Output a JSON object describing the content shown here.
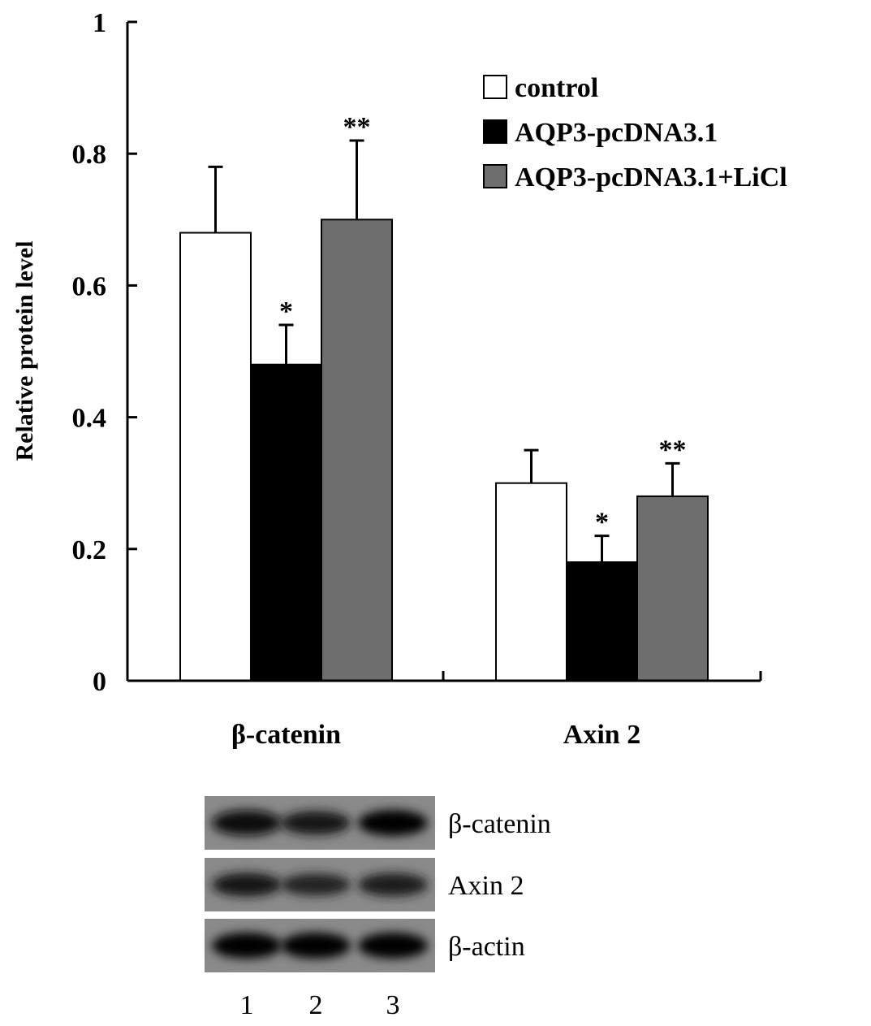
{
  "chart_data": {
    "type": "bar",
    "ylabel": "Relative protein level",
    "ylim": [
      0,
      1
    ],
    "yticks": [
      "0",
      "0.2",
      "0.4",
      "0.6",
      "0.8",
      "1"
    ],
    "categories": [
      "β-catenin",
      "Axin 2"
    ],
    "series": [
      {
        "name": "control",
        "color": "#ffffff",
        "values": [
          0.68,
          0.3
        ],
        "errors": [
          0.1,
          0.05
        ],
        "annotations": [
          "",
          ""
        ]
      },
      {
        "name": "AQP3-pcDNA3.1",
        "color": "#000000",
        "values": [
          0.48,
          0.18
        ],
        "errors": [
          0.06,
          0.04
        ],
        "annotations": [
          "*",
          "*"
        ]
      },
      {
        "name": "AQP3-pcDNA3.1+LiCl",
        "color": "#6e6e6e",
        "values": [
          0.7,
          0.28
        ],
        "errors": [
          0.12,
          0.05
        ],
        "annotations": [
          "**",
          "**"
        ]
      }
    ],
    "legend_position": "top-right",
    "grid": false
  },
  "blot": {
    "rows": [
      {
        "label": "β-catenin",
        "intensity": [
          0.95,
          0.8,
          1.0
        ]
      },
      {
        "label": "Axin 2",
        "intensity": [
          0.8,
          0.65,
          0.75
        ]
      },
      {
        "label": "β-actin",
        "intensity": [
          1.0,
          1.0,
          1.0
        ]
      }
    ],
    "lanes": [
      "1",
      "2",
      "3"
    ]
  }
}
